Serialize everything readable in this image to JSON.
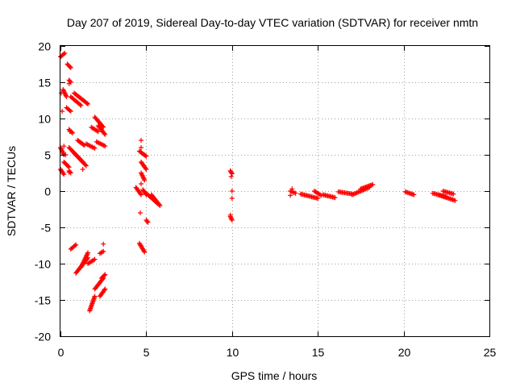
{
  "chart_data": {
    "type": "scatter",
    "title": "Day 207 of 2019, Sidereal Day-to-day VTEC variation (SDTVAR) for receiver nmtn",
    "xlabel": "GPS time / hours",
    "ylabel": "SDTVAR / TECUs",
    "xlim": [
      0,
      25
    ],
    "ylim": [
      -20,
      20
    ],
    "xticks": [
      0,
      5,
      10,
      15,
      20,
      25
    ],
    "xtick_labels": [
      "0",
      "5",
      "10",
      "15",
      "20",
      "25"
    ],
    "yticks": [
      -20,
      -15,
      -10,
      -5,
      0,
      5,
      10,
      15,
      20
    ],
    "ytick_labels": [
      "-20",
      "-15",
      "-10",
      "-5",
      "0",
      "5",
      "10",
      "15",
      "20"
    ],
    "grid": true,
    "marker": "+",
    "color": "#ff0000",
    "series": [
      {
        "name": "SDTVAR",
        "segments": [
          {
            "x": [
              0.0,
              0.25
            ],
            "y": [
              18.5,
              19.0
            ]
          },
          {
            "x": [
              0.15,
              0.35
            ],
            "y": [
              14.0,
              13.0
            ]
          },
          {
            "x": [
              0.4,
              0.6
            ],
            "y": [
              17.5,
              17.0
            ]
          },
          {
            "x": [
              0.5,
              0.6
            ],
            "y": [
              15.3,
              15.0
            ]
          },
          {
            "x": [
              0.35,
              0.6
            ],
            "y": [
              11.5,
              11.0
            ]
          },
          {
            "x": [
              0.6,
              1.2
            ],
            "y": [
              13.0,
              11.8
            ]
          },
          {
            "x": [
              0.8,
              1.6
            ],
            "y": [
              13.5,
              12.0
            ]
          },
          {
            "x": [
              0.0,
              0.2
            ],
            "y": [
              6.0,
              5.0
            ]
          },
          {
            "x": [
              0.0,
              0.2
            ],
            "y": [
              3.0,
              2.3
            ]
          },
          {
            "x": [
              0.2,
              0.5
            ],
            "y": [
              4.0,
              3.3
            ]
          },
          {
            "x": [
              0.5,
              0.7
            ],
            "y": [
              8.5,
              8.0
            ]
          },
          {
            "x": [
              0.5,
              1.5
            ],
            "y": [
              6.0,
              3.5
            ]
          },
          {
            "x": [
              0.7,
              1.3
            ],
            "y": [
              5.5,
              4.0
            ]
          },
          {
            "x": [
              0.5,
              0.6
            ],
            "y": [
              2.8,
              2.5
            ]
          },
          {
            "x": [
              1.0,
              1.4
            ],
            "y": [
              7.0,
              6.3
            ]
          },
          {
            "x": [
              1.5,
              2.0
            ],
            "y": [
              6.5,
              5.9
            ]
          },
          {
            "x": [
              1.8,
              2.2
            ],
            "y": [
              8.8,
              8.2
            ]
          },
          {
            "x": [
              2.1,
              2.6
            ],
            "y": [
              6.8,
              6.2
            ]
          },
          {
            "x": [
              2.0,
              2.5
            ],
            "y": [
              10.2,
              8.8
            ]
          },
          {
            "x": [
              2.2,
              2.6
            ],
            "y": [
              9.0,
              7.8
            ]
          },
          {
            "x": [
              0.6,
              0.9
            ],
            "y": [
              -8.0,
              -7.4
            ]
          },
          {
            "x": [
              0.9,
              1.6
            ],
            "y": [
              -11.3,
              -9.2
            ]
          },
          {
            "x": [
              1.2,
              1.6
            ],
            "y": [
              -10.5,
              -8.5
            ]
          },
          {
            "x": [
              1.6,
              2.0
            ],
            "y": [
              -10.0,
              -9.4
            ]
          },
          {
            "x": [
              2.3,
              2.5
            ],
            "y": [
              -8.6,
              -8.3
            ]
          },
          {
            "x": [
              1.7,
              2.0
            ],
            "y": [
              -16.5,
              -14.5
            ]
          },
          {
            "x": [
              2.0,
              2.5
            ],
            "y": [
              -13.5,
              -12.0
            ]
          },
          {
            "x": [
              2.3,
              2.6
            ],
            "y": [
              -14.5,
              -13.5
            ]
          },
          {
            "x": [
              2.4,
              2.6
            ],
            "y": [
              -12.0,
              -11.5
            ]
          },
          {
            "x": [
              4.4,
              4.7
            ],
            "y": [
              0.5,
              -0.5
            ]
          },
          {
            "x": [
              4.6,
              5.0
            ],
            "y": [
              5.5,
              4.8
            ]
          },
          {
            "x": [
              4.7,
              5.0
            ],
            "y": [
              4.0,
              3.0
            ]
          },
          {
            "x": [
              4.7,
              4.9
            ],
            "y": [
              2.5,
              1.5
            ]
          },
          {
            "x": [
              4.8,
              5.0
            ],
            "y": [
              0.2,
              -0.5
            ]
          },
          {
            "x": [
              5.0,
              5.7
            ],
            "y": [
              -0.3,
              -1.8
            ]
          },
          {
            "x": [
              5.3,
              5.8
            ],
            "y": [
              -0.5,
              -2.0
            ]
          },
          {
            "x": [
              4.6,
              4.9
            ],
            "y": [
              -7.2,
              -8.4
            ]
          },
          {
            "x": [
              5.0,
              5.1
            ],
            "y": [
              -4.0,
              -4.3
            ]
          },
          {
            "x": [
              9.9,
              10.0
            ],
            "y": [
              2.8,
              2.4
            ]
          },
          {
            "x": [
              9.9,
              10.0
            ],
            "y": [
              -3.5,
              -4.0
            ]
          },
          {
            "x": [
              13.4,
              13.7
            ],
            "y": [
              0.0,
              -0.3
            ]
          },
          {
            "x": [
              14.0,
              15.0
            ],
            "y": [
              -0.4,
              -1.0
            ]
          },
          {
            "x": [
              14.8,
              15.2
            ],
            "y": [
              0.0,
              -0.6
            ]
          },
          {
            "x": [
              15.3,
              16.0
            ],
            "y": [
              -0.5,
              -0.9
            ]
          },
          {
            "x": [
              16.2,
              17.0
            ],
            "y": [
              -0.1,
              -0.4
            ]
          },
          {
            "x": [
              17.0,
              18.0
            ],
            "y": [
              -0.5,
              0.5
            ]
          },
          {
            "x": [
              17.5,
              18.2
            ],
            "y": [
              0.3,
              0.9
            ]
          },
          {
            "x": [
              20.1,
              20.6
            ],
            "y": [
              -0.1,
              -0.5
            ]
          },
          {
            "x": [
              21.7,
              22.5
            ],
            "y": [
              -0.3,
              -0.8
            ]
          },
          {
            "x": [
              22.0,
              23.0
            ],
            "y": [
              -0.5,
              -1.3
            ]
          },
          {
            "x": [
              22.3,
              22.9
            ],
            "y": [
              0.0,
              -0.4
            ]
          }
        ],
        "points": [
          {
            "x": 0.05,
            "y": 13.5
          },
          {
            "x": 0.1,
            "y": 11.0
          },
          {
            "x": 0.3,
            "y": 5.0
          },
          {
            "x": 0.2,
            "y": 6.2
          },
          {
            "x": 0.5,
            "y": 14.8
          },
          {
            "x": 0.55,
            "y": 8.2
          },
          {
            "x": 0.5,
            "y": 2.6
          },
          {
            "x": 1.3,
            "y": 3.0
          },
          {
            "x": 2.5,
            "y": -7.3
          },
          {
            "x": 4.7,
            "y": 7.0
          },
          {
            "x": 4.7,
            "y": 6.0
          },
          {
            "x": 4.65,
            "y": -3.0
          },
          {
            "x": 4.7,
            "y": 1.0
          },
          {
            "x": 5.05,
            "y": -4.2
          },
          {
            "x": 10.0,
            "y": 0.0
          },
          {
            "x": 10.0,
            "y": -1.0
          },
          {
            "x": 9.9,
            "y": -3.3
          },
          {
            "x": 9.95,
            "y": 2.0
          },
          {
            "x": 13.5,
            "y": 0.3
          },
          {
            "x": 13.4,
            "y": -0.6
          }
        ]
      }
    ]
  }
}
